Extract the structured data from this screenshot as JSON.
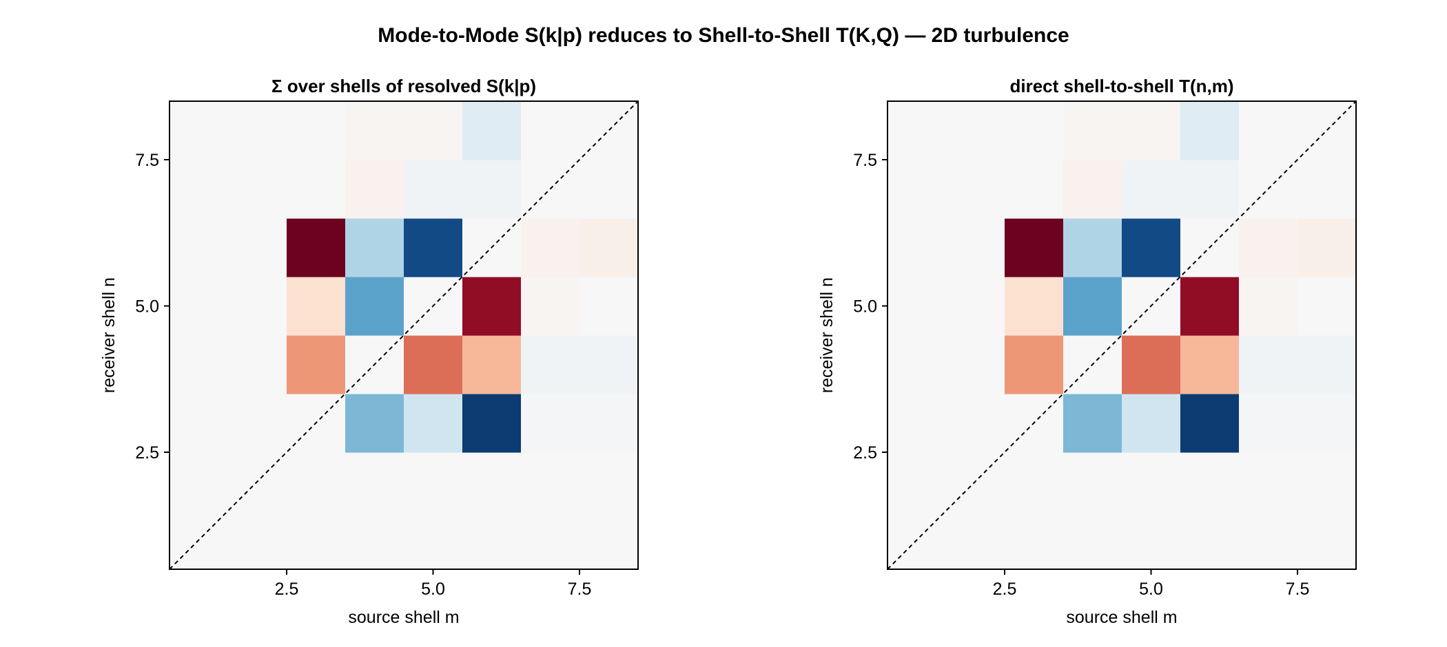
{
  "title": "Mode-to-Mode S(k|p) reduces to Shell-to-Shell T(K,Q) — 2D turbulence",
  "chart_data": [
    {
      "type": "heatmap",
      "title": "Σ over shells of resolved S(k|p)",
      "xlabel": "source shell m",
      "ylabel": "receiver shell n",
      "x_ticks": [
        2.5,
        5.0,
        7.5
      ],
      "y_ticks": [
        2.5,
        5.0,
        7.5
      ],
      "x_tick_labels": [
        "2.5",
        "5.0",
        "7.5"
      ],
      "y_tick_labels": [
        "2.5",
        "5.0",
        "7.5"
      ],
      "xlim": [
        0.5,
        8.5
      ],
      "ylim": [
        0.5,
        8.5
      ],
      "grid": false,
      "diagonal_reference": true,
      "colormap": "RdBu",
      "color_range": [
        -1,
        1
      ],
      "shells": [
        1,
        2,
        3,
        4,
        5,
        6,
        7,
        8
      ],
      "z": [
        [
          0,
          0,
          0,
          0,
          0,
          0,
          0,
          0
        ],
        [
          0,
          0,
          0,
          0,
          0,
          0,
          0,
          0
        ],
        [
          0,
          0,
          0,
          -0.32,
          -0.1,
          -0.95,
          -0.01,
          -0.01
        ],
        [
          0,
          0,
          0.3,
          0,
          0.45,
          0.2,
          -0.02,
          -0.02
        ],
        [
          0,
          0,
          0.08,
          -0.42,
          0,
          0.86,
          0.01,
          0
        ],
        [
          0,
          0,
          0.98,
          -0.18,
          -0.88,
          0,
          0.02,
          0.03
        ],
        [
          0,
          0,
          0,
          0.02,
          -0.02,
          -0.02,
          0,
          0
        ],
        [
          0,
          0,
          0,
          0.01,
          0.01,
          -0.06,
          0,
          0
        ]
      ]
    },
    {
      "type": "heatmap",
      "title": "direct shell-to-shell T(n,m)",
      "xlabel": "source shell m",
      "ylabel": "receiver shell n",
      "x_ticks": [
        2.5,
        5.0,
        7.5
      ],
      "y_ticks": [
        2.5,
        5.0,
        7.5
      ],
      "x_tick_labels": [
        "2.5",
        "5.0",
        "7.5"
      ],
      "y_tick_labels": [
        "2.5",
        "5.0",
        "7.5"
      ],
      "xlim": [
        0.5,
        8.5
      ],
      "ylim": [
        0.5,
        8.5
      ],
      "grid": false,
      "diagonal_reference": true,
      "colormap": "RdBu",
      "color_range": [
        -1,
        1
      ],
      "shells": [
        1,
        2,
        3,
        4,
        5,
        6,
        7,
        8
      ],
      "z": [
        [
          0,
          0,
          0,
          0,
          0,
          0,
          0,
          0
        ],
        [
          0,
          0,
          0,
          0,
          0,
          0,
          0,
          0
        ],
        [
          0,
          0,
          0,
          -0.32,
          -0.1,
          -0.95,
          -0.01,
          -0.01
        ],
        [
          0,
          0,
          0.3,
          0,
          0.45,
          0.2,
          -0.02,
          -0.02
        ],
        [
          0,
          0,
          0.08,
          -0.42,
          0,
          0.86,
          0.01,
          0
        ],
        [
          0,
          0,
          0.98,
          -0.18,
          -0.88,
          0,
          0.02,
          0.03
        ],
        [
          0,
          0,
          0,
          0.02,
          -0.02,
          -0.02,
          0,
          0
        ],
        [
          0,
          0,
          0,
          0.01,
          0.01,
          -0.06,
          0,
          0
        ]
      ]
    }
  ]
}
